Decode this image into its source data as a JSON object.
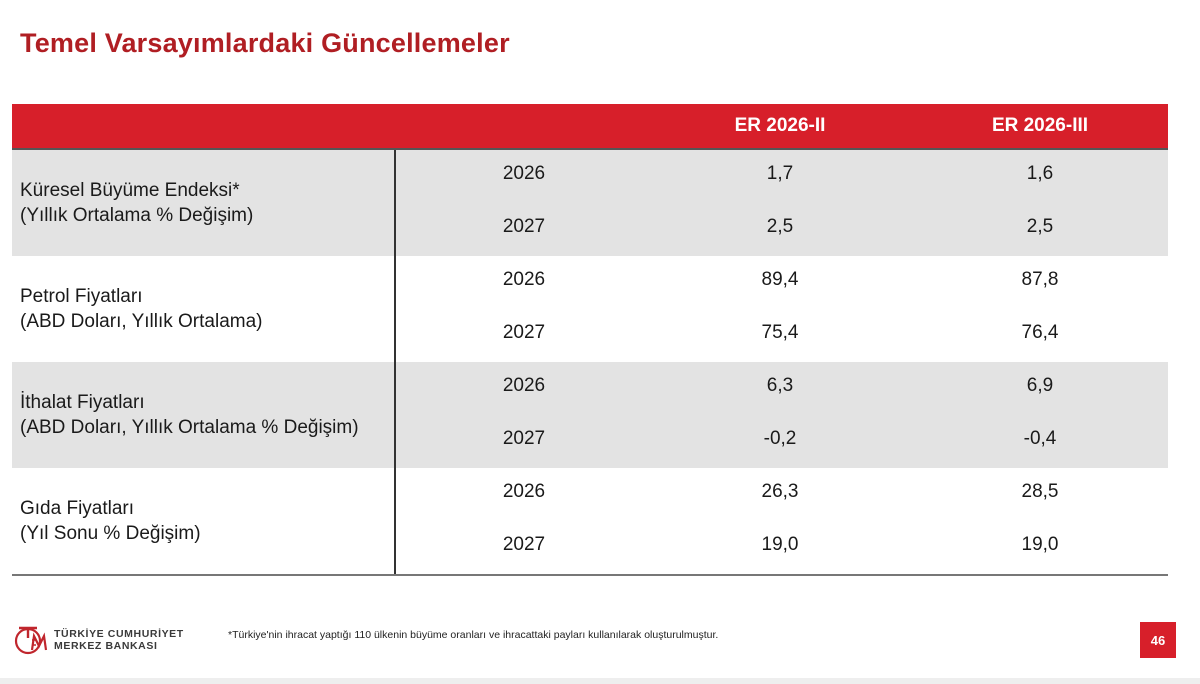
{
  "title": "Temel Varsayımlardaki Güncellemeler",
  "table": {
    "headers": {
      "col_a": "ER 2026-II",
      "col_b": "ER 2026-III"
    },
    "groups": [
      {
        "label_line1": "Küresel Büyüme Endeksi*",
        "label_line2": "(Yıllık Ortalama % Değişim)",
        "rows": [
          {
            "year": "2026",
            "a": "1,7",
            "b": "1,6"
          },
          {
            "year": "2027",
            "a": "2,5",
            "b": "2,5"
          }
        ]
      },
      {
        "label_line1": "Petrol Fiyatları",
        "label_line2": "(ABD Doları, Yıllık Ortalama)",
        "rows": [
          {
            "year": "2026",
            "a": "89,4",
            "b": "87,8"
          },
          {
            "year": "2027",
            "a": "75,4",
            "b": "76,4"
          }
        ]
      },
      {
        "label_line1": "İthalat Fiyatları",
        "label_line2": "(ABD Doları, Yıllık Ortalama % Değişim)",
        "rows": [
          {
            "year": "2026",
            "a": "6,3",
            "b": "6,9"
          },
          {
            "year": "2027",
            "a": "-0,2",
            "b": "-0,4"
          }
        ]
      },
      {
        "label_line1": "Gıda Fiyatları",
        "label_line2": "(Yıl Sonu % Değişim)",
        "rows": [
          {
            "year": "2026",
            "a": "26,3",
            "b": "28,5"
          },
          {
            "year": "2027",
            "a": "19,0",
            "b": "19,0"
          }
        ]
      }
    ]
  },
  "footer": {
    "bank_line1": "TÜRKİYE CUMHURİYET",
    "bank_line2": "MERKEZ BANKASI",
    "logo_text": "TCMB",
    "note": "*Türkiye'nin ihracat yaptığı 110 ülkenin büyüme oranları ve ihracattaki payları kullanılarak oluşturulmuştur.",
    "page_number": "46"
  },
  "colors": {
    "accent": "#d71f2a",
    "title": "#b01e23",
    "shade": "#e3e3e3"
  }
}
